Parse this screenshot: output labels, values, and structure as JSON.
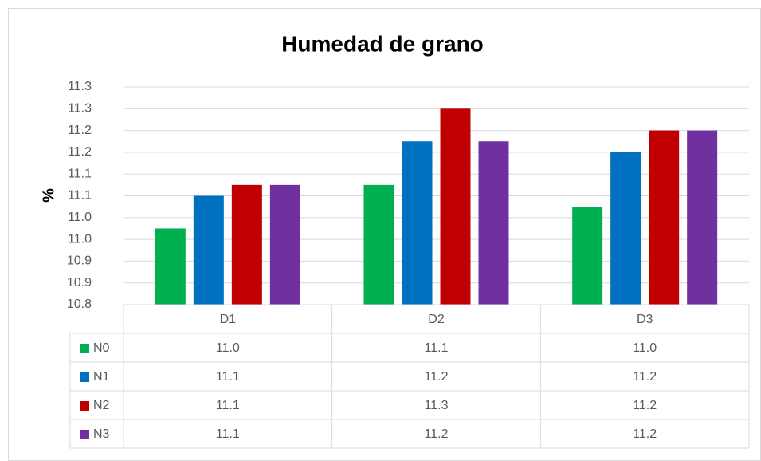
{
  "chart_data": {
    "type": "bar",
    "title": "Humedad de grano",
    "y_label": "%",
    "categories": [
      "D1",
      "D2",
      "D3"
    ],
    "series": [
      {
        "name": "N0",
        "color": "#00b050",
        "values": [
          10.975,
          11.075,
          11.025
        ],
        "value_labels": [
          "11.0",
          "11.1",
          "11.0"
        ]
      },
      {
        "name": "N1",
        "color": "#0070c0",
        "values": [
          11.05,
          11.175,
          11.15
        ],
        "value_labels": [
          "11.1",
          "11.2",
          "11.2"
        ]
      },
      {
        "name": "N2",
        "color": "#c00000",
        "values": [
          11.075,
          11.25,
          11.2
        ],
        "value_labels": [
          "11.1",
          "11.3",
          "11.2"
        ]
      },
      {
        "name": "N3",
        "color": "#7030a0",
        "values": [
          11.075,
          11.175,
          11.2
        ],
        "value_labels": [
          "11.1",
          "11.2",
          "11.2"
        ]
      }
    ],
    "ylim": [
      10.8,
      11.3
    ],
    "yticks": [
      10.8,
      {
        "value": 10.85,
        "label": "10.9"
      },
      10.9,
      {
        "value": 10.95,
        "label": "11.0"
      },
      {
        "value": 11.0,
        "label": "11.0"
      },
      {
        "value": 11.05,
        "label": "11.1"
      },
      11.1,
      {
        "value": 11.15,
        "label": "11.2"
      },
      11.2,
      {
        "value": 11.25,
        "label": "11.3"
      },
      11.3
    ],
    "grid": true,
    "data_table": true
  }
}
